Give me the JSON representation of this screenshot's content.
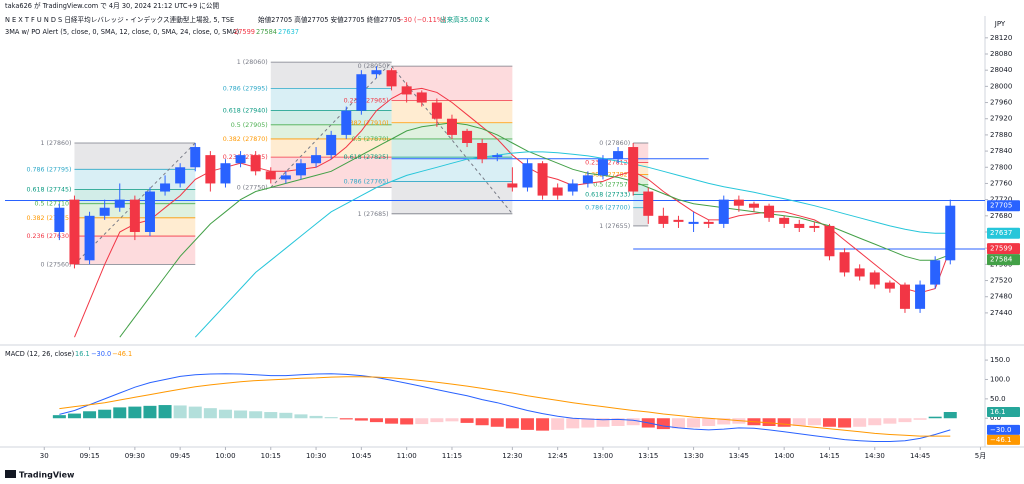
{
  "chart_data": [
    {
      "type": "candlestick",
      "publisher": "taka626 が TradingView.com で 4月 30, 2024 21:12 UTC+9 に公開",
      "title": "N E X T   F U N D S   日経平均レバレッジ・インデックス連動型上場投, 5, TSE",
      "ohlc_text": "始値27705  高値27705  安値27705  終値27705",
      "change": "−30 (−0.11%)",
      "volume": "出来高35.002 K",
      "indicator": "3MA w/ PO Alert (5, close, 0, SMA, 12, close, 0, SMA, 24, close, 0, SMA)",
      "currency": "JPY",
      "logo": "TradingView",
      "xlim": [
        -3.6,
        61.3
      ],
      "xticks": [
        {
          "value": -1,
          "label": "30"
        },
        {
          "value": 2,
          "label": "09:15"
        },
        {
          "value": 5,
          "label": "09:30"
        },
        {
          "value": 8,
          "label": "09:45"
        },
        {
          "value": 11,
          "label": "10:00"
        },
        {
          "value": 14,
          "label": "10:15"
        },
        {
          "value": 17,
          "label": "10:30"
        },
        {
          "value": 20,
          "label": "10:45"
        },
        {
          "value": 23,
          "label": "11:00"
        },
        {
          "value": 26,
          "label": "11:15"
        },
        {
          "value": 30,
          "label": "12:30"
        },
        {
          "value": 33,
          "label": "12:45"
        },
        {
          "value": 36,
          "label": "13:00"
        },
        {
          "value": 39,
          "label": "13:15"
        },
        {
          "value": 42,
          "label": "13:30"
        },
        {
          "value": 45,
          "label": "13:45"
        },
        {
          "value": 48,
          "label": "14:00"
        },
        {
          "value": 51,
          "label": "14:15"
        },
        {
          "value": 54,
          "label": "14:30"
        },
        {
          "value": 57,
          "label": "14:45"
        },
        {
          "value": 61,
          "label": "5月"
        }
      ],
      "ylim": [
        27373,
        28169
      ],
      "yticks": [
        27440,
        27480,
        27520,
        27560,
        27600,
        27640,
        27680,
        27720,
        27760,
        27800,
        27840,
        27880,
        27920,
        27960,
        28000,
        28040,
        28080,
        28120
      ],
      "up_color": "#2962ff",
      "down_color": "#f23645",
      "open": [
        27640,
        27720,
        27570,
        27680,
        27700,
        27720,
        27640,
        27740,
        27760,
        27800,
        27830,
        27760,
        27810,
        27830,
        27790,
        27770,
        27780,
        27810,
        27830,
        27880,
        27940,
        28030,
        28040,
        28000,
        27985,
        27960,
        27920,
        27890,
        27860,
        27825,
        27760,
        27750,
        27810,
        27750,
        27740,
        27760,
        27780,
        27820,
        27850,
        27740,
        27680,
        27670,
        27660,
        27665,
        27660,
        27720,
        27710,
        27705,
        27675,
        27660,
        27655,
        27655,
        27590,
        27550,
        27540,
        27515,
        27510,
        27450,
        27510,
        27570
      ],
      "high": [
        27710,
        27730,
        27690,
        27720,
        27760,
        27730,
        27750,
        27780,
        27810,
        27860,
        27840,
        27820,
        27840,
        27840,
        27800,
        27790,
        27820,
        27850,
        27890,
        27950,
        28040,
        28050,
        28045,
        28010,
        27990,
        27970,
        27930,
        27895,
        27870,
        27835,
        27800,
        27820,
        27815,
        27760,
        27770,
        27790,
        27830,
        27850,
        27860,
        27750,
        27700,
        27680,
        27690,
        27670,
        27730,
        27730,
        27715,
        27710,
        27680,
        27670,
        27665,
        27660,
        27600,
        27560,
        27545,
        27520,
        27515,
        27520,
        27580,
        27720
      ],
      "low": [
        27620,
        27550,
        27560,
        27670,
        27690,
        27620,
        27630,
        27730,
        27750,
        27790,
        27740,
        27750,
        27800,
        27780,
        27760,
        27760,
        27770,
        27800,
        27820,
        27870,
        27930,
        28020,
        27990,
        27960,
        27950,
        27900,
        27870,
        27850,
        27810,
        27815,
        27740,
        27740,
        27720,
        27720,
        27730,
        27750,
        27770,
        27810,
        27730,
        27660,
        27650,
        27650,
        27640,
        27650,
        27650,
        27690,
        27690,
        27665,
        27650,
        27640,
        27640,
        27570,
        27530,
        27520,
        27500,
        27490,
        27440,
        27440,
        27500,
        27560
      ],
      "close": [
        27700,
        27560,
        27680,
        27700,
        27720,
        27640,
        27740,
        27760,
        27800,
        27850,
        27760,
        27810,
        27830,
        27790,
        27770,
        27780,
        27810,
        27830,
        27880,
        27940,
        28030,
        28040,
        28000,
        27980,
        27960,
        27920,
        27880,
        27860,
        27820,
        27830,
        27750,
        27810,
        27730,
        27730,
        27760,
        27780,
        27820,
        27840,
        27740,
        27680,
        27660,
        27665,
        27665,
        27660,
        27720,
        27705,
        27700,
        27675,
        27660,
        27650,
        27650,
        27580,
        27540,
        27530,
        27510,
        27500,
        27450,
        27510,
        27570,
        27705
      ],
      "series": [
        {
          "name": "SMA 5",
          "color": "#f23645",
          "values": [
            null,
            27380,
            27470,
            27560,
            27640,
            27660,
            27670,
            27700,
            27730,
            27770,
            27790,
            27800,
            27810,
            27800,
            27790,
            27790,
            27795,
            27800,
            27820,
            27850,
            27890,
            27940,
            27970,
            27990,
            27995,
            27985,
            27960,
            27930,
            27900,
            27870,
            27830,
            27800,
            27780,
            27770,
            27755,
            27760,
            27765,
            27780,
            27790,
            27770,
            27740,
            27715,
            27690,
            27670,
            27670,
            27680,
            27685,
            27690,
            27690,
            27680,
            27670,
            27650,
            27620,
            27590,
            27560,
            27530,
            27500,
            27490,
            27500,
            27599
          ]
        },
        {
          "name": "SMA 12",
          "color": "#43a047",
          "values": [
            null,
            null,
            null,
            null,
            27380,
            27430,
            27480,
            27530,
            27580,
            27620,
            27660,
            27690,
            27720,
            27740,
            27750,
            27760,
            27770,
            27780,
            27790,
            27810,
            27830,
            27850,
            27870,
            27890,
            27900,
            27905,
            27910,
            27905,
            27895,
            27880,
            27860,
            27840,
            27825,
            27810,
            27795,
            27785,
            27780,
            27775,
            27765,
            27750,
            27735,
            27720,
            27710,
            27705,
            27700,
            27695,
            27690,
            27685,
            27680,
            27675,
            27665,
            27655,
            27640,
            27625,
            27610,
            27595,
            27580,
            27570,
            27570,
            27584
          ]
        },
        {
          "name": "SMA 24",
          "color": "#26c6da",
          "values": [
            null,
            null,
            null,
            null,
            null,
            null,
            null,
            null,
            null,
            27380,
            27420,
            27460,
            27500,
            27540,
            27570,
            27600,
            27630,
            27660,
            27690,
            27710,
            27730,
            27750,
            27765,
            27780,
            27790,
            27800,
            27810,
            27820,
            27825,
            27830,
            27835,
            27838,
            27838,
            27836,
            27832,
            27828,
            27822,
            27815,
            27808,
            27800,
            27790,
            27780,
            27770,
            27760,
            27752,
            27745,
            27738,
            27730,
            27722,
            27714,
            27705,
            27695,
            27685,
            27675,
            27665,
            27655,
            27647,
            27640,
            27637,
            27637
          ]
        }
      ],
      "fib_colors": [
        "#787b86",
        "#2ea8c8",
        "#089981",
        "#4caf50",
        "#ff9800",
        "#f23645",
        "#787b86"
      ],
      "fibs": [
        {
          "start": 1,
          "end": 9,
          "trend": "up",
          "levels": [
            27860,
            27795,
            27745,
            27710,
            27675,
            27630,
            27560
          ],
          "labels": [
            "1 (27860)",
            "0.786 (27795)",
            "0.618 (27745)",
            "0.5 (27710)",
            "0.382 (27675)",
            "0.236 (27630)",
            "0 (27560)"
          ]
        },
        {
          "start": 14,
          "end": 22,
          "trend": "up",
          "levels": [
            28060,
            27995,
            27940,
            27905,
            27870,
            27825,
            27750
          ],
          "labels": [
            "1 (28060)",
            "0.786 (27995)",
            "0.618 (27940)",
            "0.5 (27905)",
            "0.382 (27870)",
            "0.236 (27825)",
            "0 (27750)"
          ]
        },
        {
          "start": 22,
          "end": 30,
          "trend": "down",
          "levels": [
            27685,
            27765,
            27825,
            27870,
            27910,
            27965,
            28050
          ],
          "labels": [
            "1 (27685)",
            "0.786 (27765)",
            "0.618 (27825)",
            "0.5 (27870)",
            "0.382 (27910)",
            "0.236 (27965)",
            "0 (28050)"
          ]
        },
        {
          "start": 38,
          "end": 39,
          "trend": "none",
          "levels": [
            27655,
            27700,
            27733,
            27757,
            27782,
            27812,
            27860
          ],
          "labels": [
            "1 (27655)",
            "0.786 (27700)",
            "0.618 (27733)",
            "0.5 (27757)",
            "0.382 (27782)",
            "0.236 (27812)",
            "0 (27860)"
          ]
        }
      ],
      "hlines": [
        {
          "value": 27821,
          "start": 22,
          "end": 43
        },
        {
          "value": 27718,
          "start": -3.6,
          "end": 61.3
        },
        {
          "value": 27598,
          "start": 38,
          "end": 61.3
        }
      ],
      "hline_color": "#2962ff"
    },
    {
      "type": "macd",
      "title": "MACD (12, 26, close)",
      "xlim": [
        -3.6,
        61.3
      ],
      "ylim": [
        -69,
        176
      ],
      "yticks": [
        {
          "value": 0,
          "label": "0.0"
        },
        {
          "value": 50,
          "label": "50.0"
        },
        {
          "value": 100,
          "label": "100.0"
        },
        {
          "value": 150,
          "label": "150.0"
        }
      ],
      "values": [
        8,
        12,
        18,
        22,
        28,
        30,
        32,
        34,
        33,
        30,
        26,
        22,
        20,
        18,
        16,
        14,
        10,
        6,
        3,
        -3,
        -6,
        -10,
        -14,
        -16,
        -15,
        -10,
        -8,
        -12,
        -18,
        -22,
        -26,
        -30,
        -32,
        -30,
        -26,
        -24,
        -22,
        -20,
        -18,
        -24,
        -28,
        -26,
        -24,
        -20,
        -16,
        -14,
        -18,
        -20,
        -22,
        -20,
        -18,
        -22,
        -24,
        -22,
        -18,
        -14,
        -10,
        -4,
        4,
        16.1
      ],
      "hist_colors": [
        "#26a69a",
        "#b2dfdb",
        "#ff5252",
        "#ffcdd2"
      ],
      "series": [
        {
          "name": "MACD",
          "color": "#2962ff",
          "values": [
            10,
            20,
            35,
            50,
            65,
            80,
            92,
            100,
            108,
            112,
            114,
            115,
            114,
            112,
            110,
            110,
            112,
            114,
            115,
            113,
            110,
            105,
            98,
            90,
            82,
            74,
            66,
            58,
            48,
            40,
            30,
            20,
            12,
            5,
            0,
            -2,
            -4,
            -3,
            -5,
            -12,
            -20,
            -25,
            -28,
            -30,
            -28,
            -25,
            -26,
            -30,
            -35,
            -40,
            -45,
            -50,
            -55,
            -58,
            -60,
            -60,
            -58,
            -52,
            -42,
            -30
          ],
          "value_labels": [
            null,
            null,
            null,
            null,
            null,
            null,
            null,
            null,
            null,
            null,
            null,
            null,
            null,
            null,
            null,
            null,
            null,
            null,
            null,
            null,
            null,
            null,
            null,
            null,
            null,
            null,
            null,
            null,
            null,
            null,
            null,
            null,
            null,
            null,
            null,
            null,
            null,
            null,
            null,
            null,
            null,
            null,
            null,
            null,
            null,
            null,
            null,
            null,
            null,
            null,
            null,
            null,
            null,
            null,
            null,
            null,
            null,
            null,
            null,
            "−30.0"
          ]
        },
        {
          "name": "Signal",
          "color": "#ff9800",
          "values": [
            25,
            30,
            35,
            40,
            47,
            54,
            61,
            68,
            75,
            81,
            86,
            90,
            94,
            97,
            99,
            101,
            103,
            104,
            106,
            107,
            107,
            106,
            104,
            101,
            97,
            93,
            88,
            83,
            77,
            71,
            65,
            58,
            52,
            46,
            40,
            35,
            30,
            25,
            20,
            16,
            11,
            7,
            3,
            0,
            -3,
            -6,
            -9,
            -12,
            -15,
            -19,
            -23,
            -27,
            -31,
            -35,
            -39,
            -42,
            -44,
            -46,
            -46,
            -46.1
          ],
          "value_labels": [
            null,
            null,
            null,
            null,
            null,
            null,
            null,
            null,
            null,
            null,
            null,
            null,
            null,
            null,
            null,
            null,
            null,
            null,
            null,
            null,
            null,
            null,
            null,
            null,
            null,
            null,
            null,
            null,
            null,
            null,
            null,
            null,
            null,
            null,
            null,
            null,
            null,
            null,
            null,
            null,
            null,
            null,
            null,
            null,
            null,
            null,
            null,
            null,
            null,
            null,
            null,
            null,
            null,
            null,
            null,
            null,
            null,
            null,
            null,
            "−46.1"
          ]
        }
      ]
    }
  ]
}
